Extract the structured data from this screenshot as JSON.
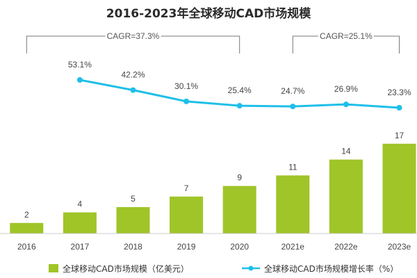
{
  "chart_data": {
    "type": "bar",
    "title": "2016-2023年全球移动CAD市场规模",
    "categories": [
      "2016",
      "2017",
      "2018",
      "2019",
      "2020",
      "2021e",
      "2022e",
      "2023e"
    ],
    "series": [
      {
        "name": "全球移动CAD市场规模（亿美元）",
        "type": "bar",
        "values": [
          2,
          4,
          5,
          7,
          9,
          11,
          14,
          17
        ],
        "value_labels": [
          "2",
          "4",
          "5",
          "7",
          "9",
          "11",
          "14",
          "17"
        ],
        "color": "#9fc528"
      },
      {
        "name": "全球移动CAD市场规模增长率（%）",
        "type": "line",
        "values": [
          null,
          53.1,
          42.2,
          30.1,
          25.4,
          24.7,
          26.9,
          23.3
        ],
        "value_labels": [
          "",
          "53.1%",
          "42.2%",
          "30.1%",
          "25.4%",
          "24.7%",
          "26.9%",
          "23.3%"
        ],
        "color": "#1fbfe8"
      }
    ],
    "annotations": [
      {
        "text": "CAGR=37.3%",
        "from": "2016",
        "to": "2020"
      },
      {
        "text": "CAGR=25.1%",
        "from": "2021e",
        "to": "2023e"
      }
    ],
    "ylim": [
      0,
      20
    ],
    "line_ylim": [
      0,
      100
    ],
    "grid": false,
    "legend_position": "bottom"
  }
}
